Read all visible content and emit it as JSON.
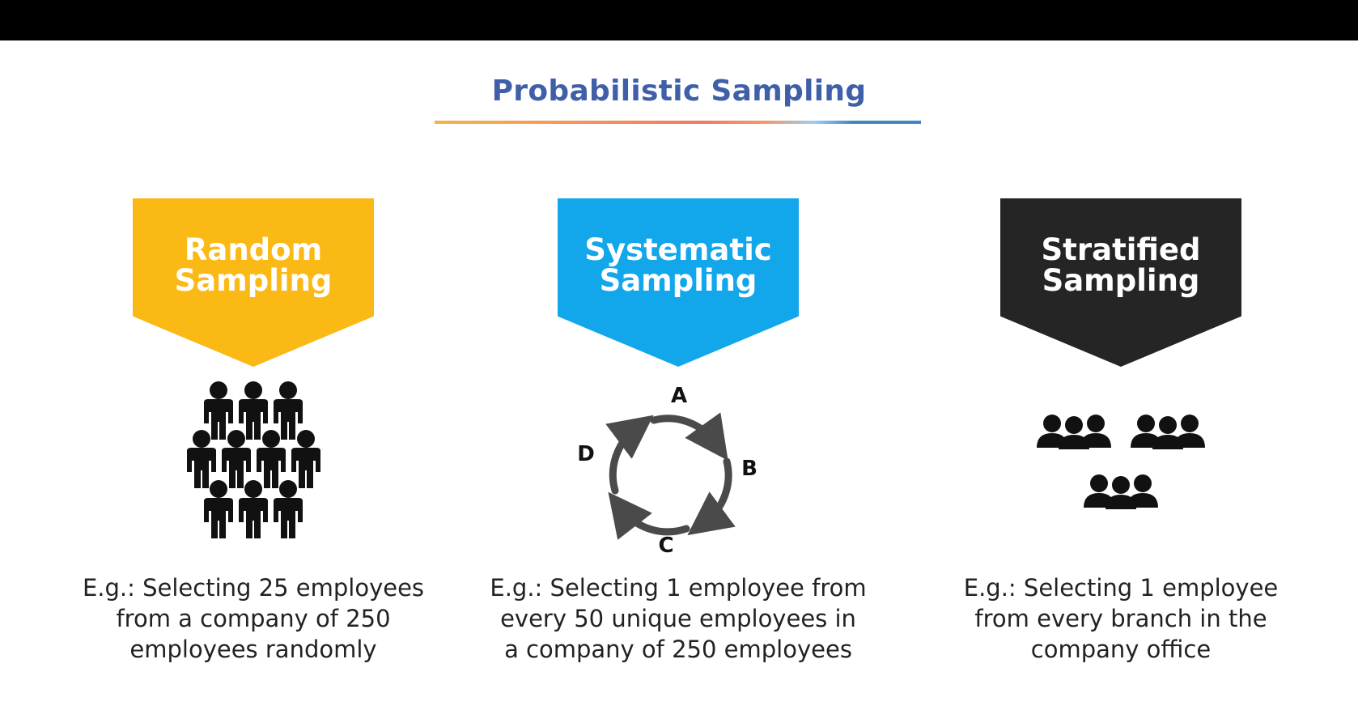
{
  "title": "Probabilistic Sampling",
  "colors": {
    "title": "#3f5fa9",
    "random": "#fbb915",
    "systematic": "#12a6ea",
    "stratified": "#252525",
    "icon": "#111111",
    "cycle_arrows": "#4a4a4a"
  },
  "methods": [
    {
      "name_lines": [
        "Random",
        "Sampling"
      ],
      "icon": "crowd-icon",
      "example_lines": [
        "E.g.: Selecting 25 employees",
        "from a company of 250",
        "employees randomly"
      ]
    },
    {
      "name_lines": [
        "Systematic",
        "Sampling"
      ],
      "icon": "cycle-arrows-icon",
      "cycle_labels": [
        "A",
        "B",
        "C",
        "D"
      ],
      "example_lines": [
        "E.g.: Selecting 1 employee from",
        "every 50 unique employees in",
        "a company of 250 employees"
      ]
    },
    {
      "name_lines": [
        "Stratified",
        "Sampling"
      ],
      "icon": "groups-icon",
      "example_lines": [
        "E.g.: Selecting 1 employee",
        "from every branch in the",
        "company office"
      ]
    }
  ]
}
